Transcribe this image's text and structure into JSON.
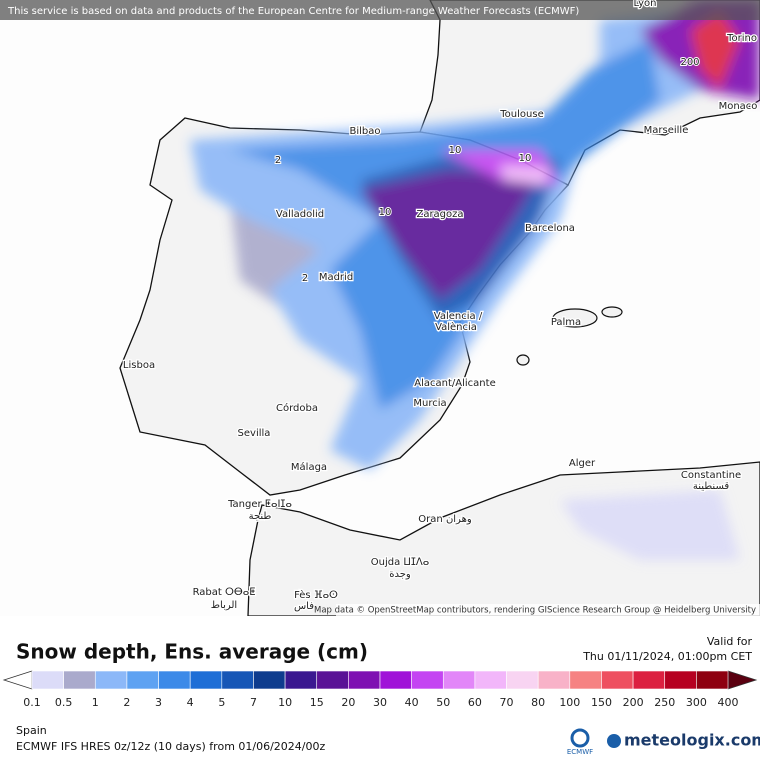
{
  "banner": "This service is based on data and products of the European Centre for Medium-range Weather Forecasts (ECMWF)",
  "attribution": "Map data © OpenStreetMap contributors, rendering GIScience Research Group @ Heidelberg University",
  "cities": [
    "Lyon",
    "Torino",
    "Monaco",
    "Marseille",
    "Toulouse",
    "Bilbao",
    "Valladolid",
    "Zaragoza",
    "Barcelona",
    "Madrid",
    "Valencia /",
    "València",
    "Palma",
    "Lisboa",
    "Alacant/Alicante",
    "Murcia",
    "Córdoba",
    "Sevilla",
    "Málaga",
    "Tanger ⵟⴰⵏⵊⴰ",
    "طنجة",
    "Alger",
    "Constantine",
    "قسنطينة",
    "Oran وهران",
    "Oujda ⵡⵊⴷⴰ",
    "وجدة",
    "Rabat ⵔⴱⴰⵟ",
    "الرباط",
    "Fès ⴼⴰⵙ",
    "فاس"
  ],
  "contour_labels": [
    200,
    2,
    2,
    10,
    10,
    10
  ],
  "title": "Snow depth, Ens. average (cm)",
  "valid_label": "Valid for",
  "valid_time": "Thu 01/11/2024, 01:00pm CET",
  "legend": {
    "ticks": [
      0.1,
      0.5,
      1,
      2,
      3,
      4,
      5,
      7,
      10,
      15,
      20,
      30,
      40,
      50,
      60,
      70,
      80,
      100,
      150,
      200,
      250,
      300,
      400
    ],
    "colors": [
      "#dcdcf8",
      "#aaaacc",
      "#8cb8f8",
      "#5ea2f2",
      "#3c8ae8",
      "#1e6ed6",
      "#1656b6",
      "#0e3c8e",
      "#3a1890",
      "#5a1296",
      "#7e10b2",
      "#a012d8",
      "#c444f2",
      "#e286f8",
      "#f2b6fa",
      "#f8d4f2",
      "#f8b2c8",
      "#f68282",
      "#ee5060",
      "#dc2040",
      "#b60020",
      "#8e0010"
    ],
    "under_color": "#ffffff",
    "over_color": "#5a0010"
  },
  "region": "Spain",
  "model": "ECMWF IFS HRES 0z/12z (10 days) from 01/06/2024/00z",
  "ecmwf_logo": "ECMWF",
  "brand": "meteologix.com"
}
